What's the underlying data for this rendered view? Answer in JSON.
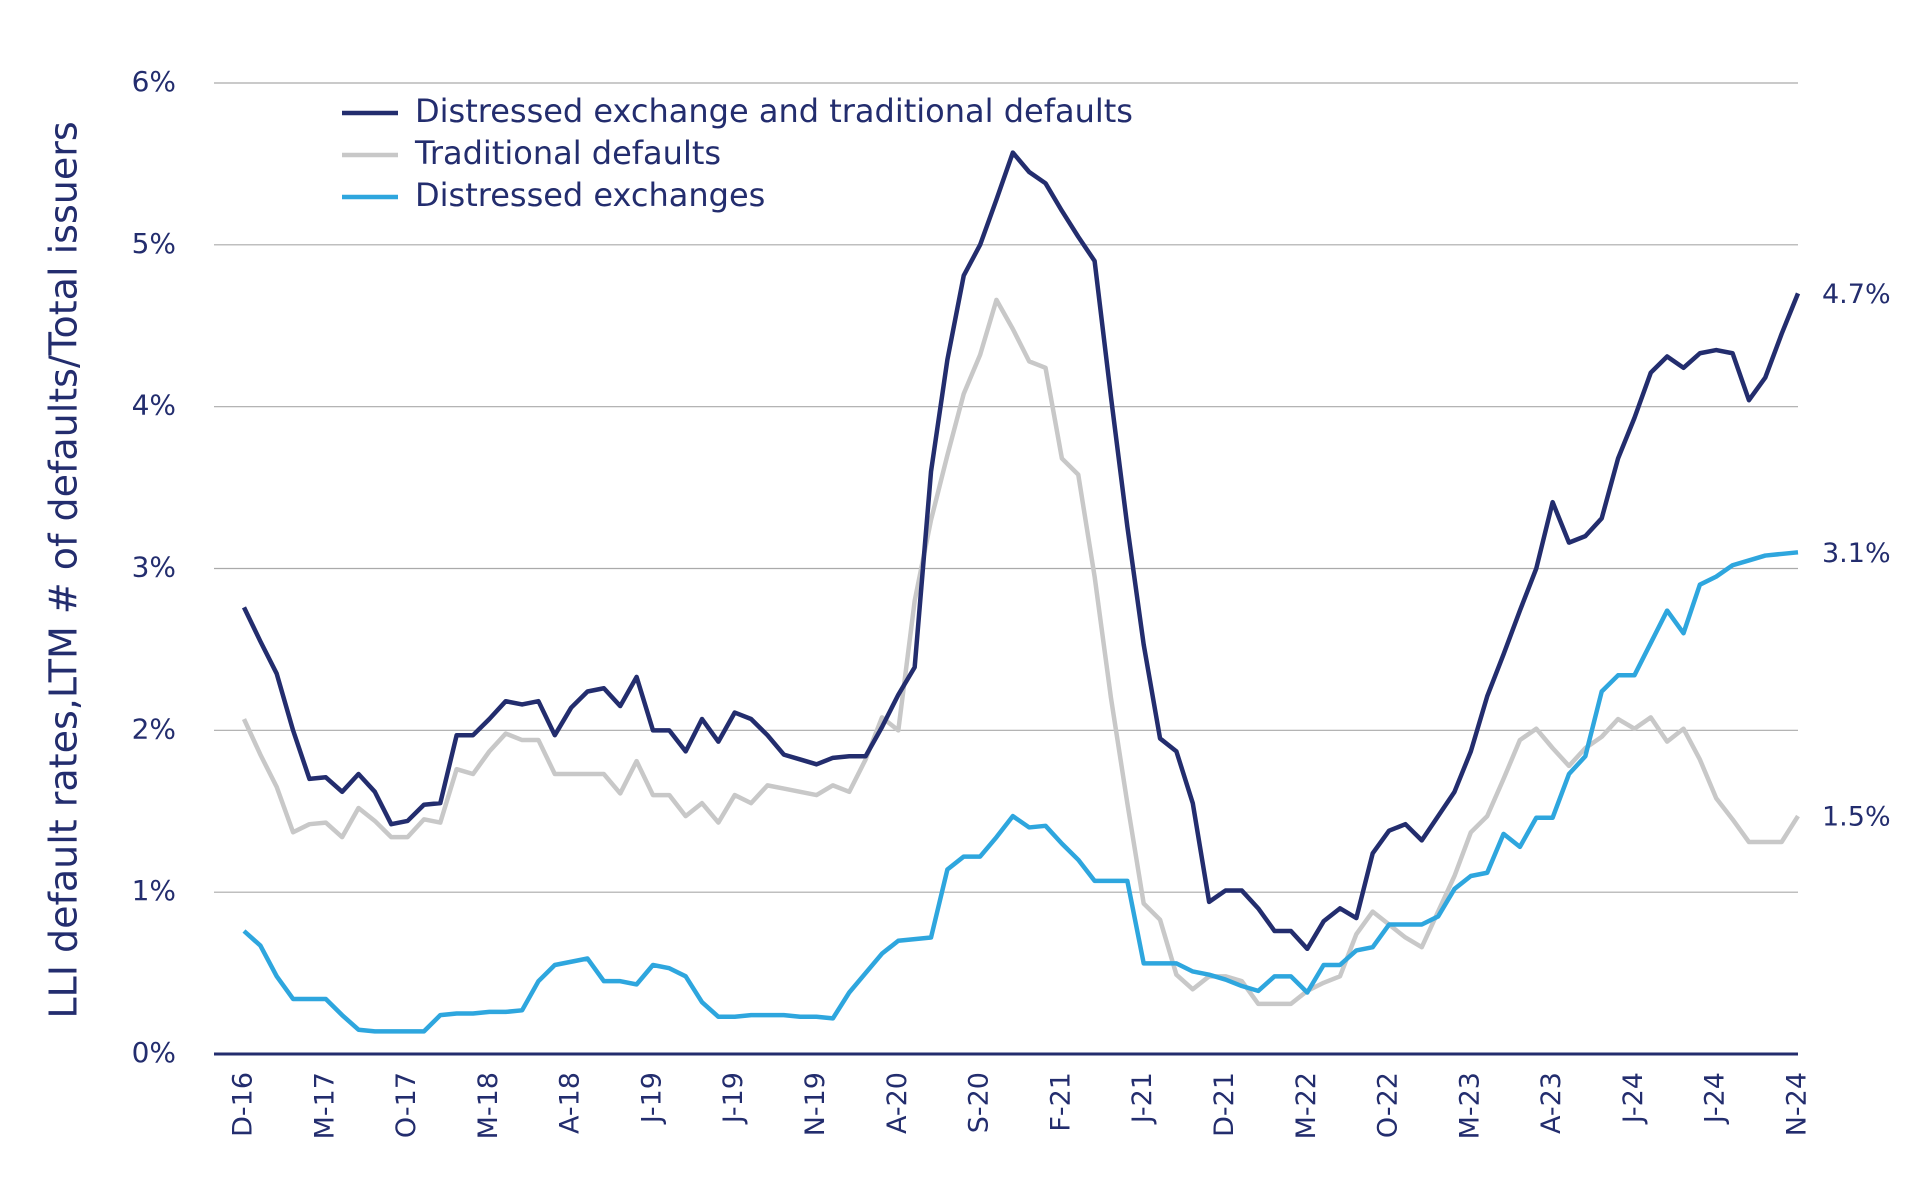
{
  "chart_data": {
    "type": "line",
    "y_label": "LLI default rates,LTM # of defaults/Total issuers",
    "categories": [
      "D-16",
      null,
      null,
      null,
      null,
      "M-17",
      null,
      null,
      null,
      null,
      "O-17",
      null,
      null,
      null,
      null,
      "M-18",
      null,
      null,
      null,
      null,
      "A-18",
      null,
      null,
      null,
      null,
      "J-19",
      null,
      null,
      null,
      null,
      "J-19",
      null,
      null,
      null,
      null,
      "N-19",
      null,
      null,
      null,
      null,
      "A-20",
      null,
      null,
      null,
      null,
      "S-20",
      null,
      null,
      null,
      null,
      "F-21",
      null,
      null,
      null,
      null,
      "J-21",
      null,
      null,
      null,
      null,
      "D-21",
      null,
      null,
      null,
      null,
      "M-22",
      null,
      null,
      null,
      null,
      "O-22",
      null,
      null,
      null,
      null,
      "M-23",
      null,
      null,
      null,
      null,
      "A-23",
      null,
      null,
      null,
      null,
      "J-24",
      null,
      null,
      null,
      null,
      "J-24",
      null,
      null,
      null,
      null,
      "N-24"
    ],
    "series": [
      {
        "name": "Distressed exchange and traditional defaults",
        "color": "#232d6e",
        "last_label": "4.7%",
        "values": [
          2.76,
          2.55,
          2.35,
          2.0,
          1.7,
          1.71,
          1.62,
          1.73,
          1.62,
          1.42,
          1.44,
          1.54,
          1.55,
          1.97,
          1.97,
          2.07,
          2.18,
          2.16,
          2.18,
          1.97,
          2.14,
          2.24,
          2.26,
          2.15,
          2.33,
          2.0,
          2.0,
          1.87,
          2.07,
          1.93,
          2.11,
          2.07,
          1.97,
          1.85,
          1.82,
          1.79,
          1.83,
          1.84,
          1.84,
          2.02,
          2.22,
          2.39,
          3.6,
          4.29,
          4.81,
          5.0,
          5.28,
          5.57,
          5.45,
          5.38,
          5.21,
          5.05,
          4.9,
          4.06,
          3.26,
          2.53,
          1.95,
          1.87,
          1.55,
          0.94,
          1.01,
          1.01,
          0.9,
          0.76,
          0.76,
          0.65,
          0.82,
          0.9,
          0.84,
          1.24,
          1.38,
          1.42,
          1.32,
          1.47,
          1.62,
          1.87,
          2.21,
          2.47,
          2.74,
          3.0,
          3.41,
          3.16,
          3.2,
          3.31,
          3.68,
          3.93,
          4.21,
          4.31,
          4.24,
          4.33,
          4.35,
          4.33,
          4.04,
          4.18,
          4.45,
          4.7
        ]
      },
      {
        "name": "Traditional defaults",
        "color": "#c8c8c8",
        "last_label": "1.5%",
        "values": [
          2.07,
          1.85,
          1.65,
          1.37,
          1.42,
          1.43,
          1.34,
          1.52,
          1.44,
          1.34,
          1.34,
          1.45,
          1.43,
          1.76,
          1.73,
          1.87,
          1.98,
          1.94,
          1.94,
          1.73,
          1.73,
          1.73,
          1.73,
          1.61,
          1.81,
          1.6,
          1.6,
          1.47,
          1.55,
          1.43,
          1.6,
          1.55,
          1.66,
          1.64,
          1.62,
          1.6,
          1.66,
          1.62,
          1.82,
          2.08,
          2.0,
          2.8,
          3.3,
          3.7,
          4.08,
          4.32,
          4.66,
          4.48,
          4.28,
          4.24,
          3.68,
          3.58,
          2.95,
          2.2,
          1.55,
          0.93,
          0.83,
          0.49,
          0.4,
          0.48,
          0.48,
          0.45,
          0.31,
          0.31,
          0.31,
          0.39,
          0.44,
          0.48,
          0.74,
          0.88,
          0.8,
          0.72,
          0.66,
          0.88,
          1.1,
          1.37,
          1.47,
          1.7,
          1.94,
          2.01,
          1.89,
          1.78,
          1.89,
          1.96,
          2.07,
          2.01,
          2.08,
          1.93,
          2.01,
          1.82,
          1.58,
          1.45,
          1.31,
          1.31,
          1.31,
          1.47
        ]
      },
      {
        "name": "Distressed exchanges",
        "color": "#2ea6de",
        "last_label": "3.1%",
        "values": [
          0.76,
          0.67,
          0.48,
          0.34,
          0.34,
          0.34,
          0.24,
          0.15,
          0.14,
          0.14,
          0.14,
          0.14,
          0.24,
          0.25,
          0.25,
          0.26,
          0.26,
          0.27,
          0.45,
          0.55,
          0.57,
          0.59,
          0.45,
          0.45,
          0.43,
          0.55,
          0.53,
          0.48,
          0.32,
          0.23,
          0.23,
          0.24,
          0.24,
          0.24,
          0.23,
          0.23,
          0.22,
          0.38,
          0.5,
          0.62,
          0.7,
          0.71,
          0.72,
          1.14,
          1.22,
          1.22,
          1.34,
          1.47,
          1.4,
          1.41,
          1.3,
          1.2,
          1.07,
          1.07,
          1.07,
          0.56,
          0.56,
          0.56,
          0.51,
          0.49,
          0.46,
          0.42,
          0.39,
          0.48,
          0.48,
          0.38,
          0.55,
          0.55,
          0.64,
          0.66,
          0.8,
          0.8,
          0.8,
          0.85,
          1.02,
          1.1,
          1.12,
          1.36,
          1.28,
          1.46,
          1.46,
          1.73,
          1.84,
          2.24,
          2.34,
          2.34,
          2.54,
          2.74,
          2.6,
          2.9,
          2.95,
          3.02,
          3.05,
          3.08,
          3.09,
          3.1
        ]
      }
    ],
    "ylim": [
      0,
      6
    ],
    "yticks": [
      {
        "value": 0,
        "label": "0%"
      },
      {
        "value": 1,
        "label": "1%"
      },
      {
        "value": 2,
        "label": "2%"
      },
      {
        "value": 3,
        "label": "3%"
      },
      {
        "value": 4,
        "label": "4%"
      },
      {
        "value": 5,
        "label": "5%"
      },
      {
        "value": 6,
        "label": "6%"
      }
    ],
    "grid": true,
    "legend": "top-left"
  }
}
